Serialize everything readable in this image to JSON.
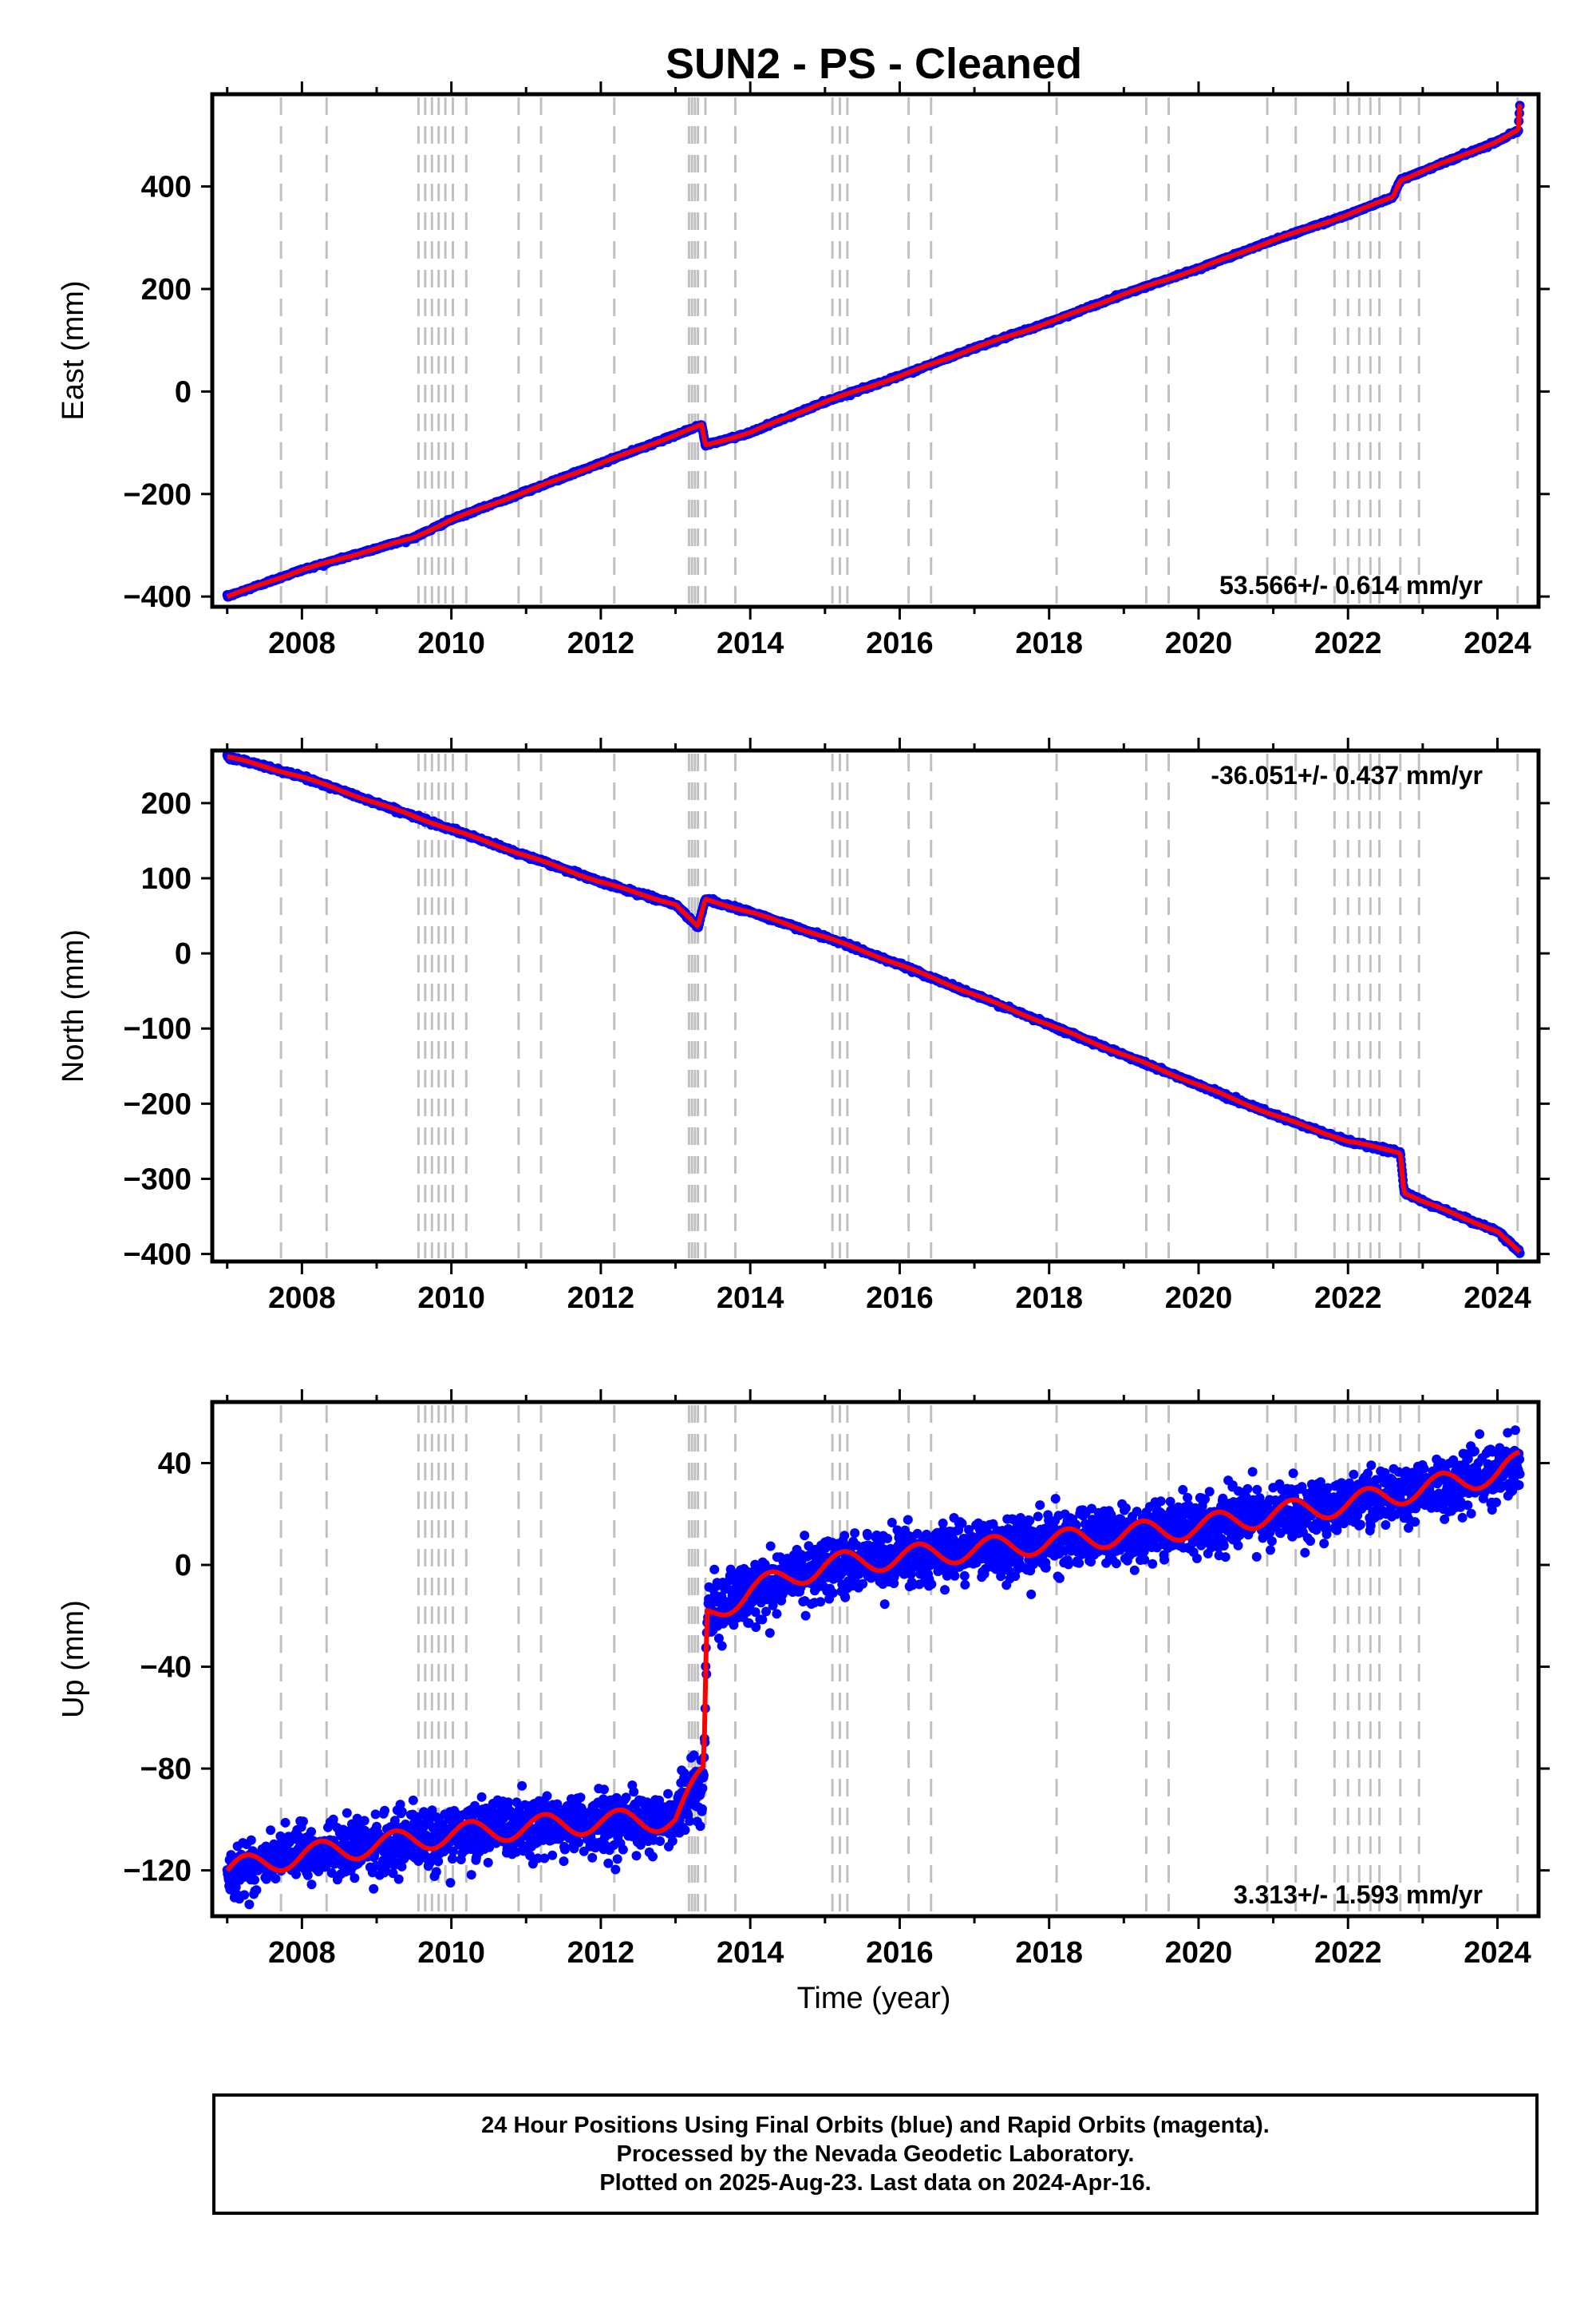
{
  "title": "SUN2  - PS - Cleaned",
  "xlabel": "Time (year)",
  "x_ticks": [
    2008,
    2010,
    2012,
    2014,
    2016,
    2018,
    2020,
    2022,
    2024
  ],
  "x_range": [
    2006.8,
    2024.55
  ],
  "event_lines": [
    2007.72,
    2008.33,
    2009.56,
    2009.65,
    2009.74,
    2009.83,
    2009.92,
    2010.02,
    2010.2,
    2010.9,
    2011.2,
    2012.18,
    2013.18,
    2013.22,
    2013.26,
    2013.3,
    2013.4,
    2013.8,
    2015.1,
    2015.2,
    2015.3,
    2016.12,
    2016.42,
    2018.1,
    2019.3,
    2019.6,
    2020.92,
    2021.3,
    2021.82,
    2022.0,
    2022.15,
    2022.3,
    2022.42,
    2022.7,
    2022.95,
    2024.27
  ],
  "colors": {
    "data": "#0000ff",
    "model": "#ff0000",
    "event_line": "#c0c0c0",
    "frame": "#000000"
  },
  "chart_data": [
    {
      "type": "scatter",
      "ylabel": "East (mm)",
      "ylim": [
        -420,
        580
      ],
      "y_ticks": [
        -400,
        -200,
        0,
        200,
        400
      ],
      "rate_text": "53.566+/- 0.614 mm/yr",
      "rate_position": "bottom-right",
      "series": [
        {
          "name": "positions",
          "x": [
            2007.0,
            2008.0,
            2009.5,
            2010.0,
            2011.0,
            2012.0,
            2013.0,
            2013.35,
            2013.4,
            2014.0,
            2015.0,
            2016.0,
            2017.0,
            2018.0,
            2019.0,
            2020.0,
            2021.0,
            2022.0,
            2022.6,
            2022.7,
            2023.0,
            2024.0,
            2024.28,
            2024.3
          ],
          "y": [
            -400,
            -348,
            -285,
            -250,
            -195,
            -140,
            -85,
            -65,
            -105,
            -80,
            -20,
            30,
            85,
            135,
            190,
            240,
            295,
            345,
            380,
            412,
            430,
            488,
            510,
            560
          ]
        }
      ]
    },
    {
      "type": "scatter",
      "ylabel": "North (mm)",
      "ylim": [
        -410,
        270
      ],
      "y_ticks": [
        -400,
        -300,
        -200,
        -100,
        0,
        100,
        200
      ],
      "rate_text": "-36.051+/- 0.437 mm/yr",
      "rate_position": "top-right",
      "series": [
        {
          "name": "positions",
          "x": [
            2007.0,
            2008.0,
            2009.0,
            2010.0,
            2011.0,
            2012.0,
            2013.0,
            2013.3,
            2013.4,
            2014.0,
            2015.0,
            2016.0,
            2017.0,
            2018.0,
            2019.0,
            2020.0,
            2021.0,
            2022.0,
            2022.7,
            2022.75,
            2023.0,
            2024.0,
            2024.3
          ],
          "y": [
            262,
            235,
            200,
            165,
            130,
            95,
            65,
            35,
            72,
            55,
            22,
            -15,
            -55,
            -95,
            -135,
            -175,
            -215,
            -250,
            -265,
            -318,
            -330,
            -370,
            -398
          ]
        }
      ]
    },
    {
      "type": "scatter",
      "ylabel": "Up (mm)",
      "ylim": [
        -138,
        64
      ],
      "y_ticks": [
        -120,
        -80,
        -40,
        0,
        40
      ],
      "rate_text": "3.313+/- 1.593 mm/yr",
      "rate_position": "bottom-right",
      "noise_sd": [
        5.5,
        5.5
      ],
      "series": [
        {
          "name": "positions",
          "x": [
            2007.0,
            2008.0,
            2009.0,
            2010.0,
            2011.0,
            2012.0,
            2013.0,
            2013.38,
            2013.42,
            2014.0,
            2015.0,
            2016.0,
            2017.0,
            2018.0,
            2019.0,
            2020.0,
            2021.0,
            2022.0,
            2023.0,
            2024.0,
            2024.3
          ],
          "y": [
            -120,
            -114,
            -110,
            -106,
            -103,
            -101,
            -100,
            -82,
            -20,
            -10,
            0,
            3,
            6,
            9,
            12,
            15,
            20,
            24,
            30,
            36,
            40
          ]
        }
      ]
    }
  ],
  "caption": {
    "line1": "24 Hour Positions Using Final Orbits (blue) and Rapid Orbits (magenta).",
    "line2": "Processed by the Nevada Geodetic Laboratory.",
    "line3": "Plotted on 2025-Aug-23. Last data on 2024-Apr-16."
  }
}
